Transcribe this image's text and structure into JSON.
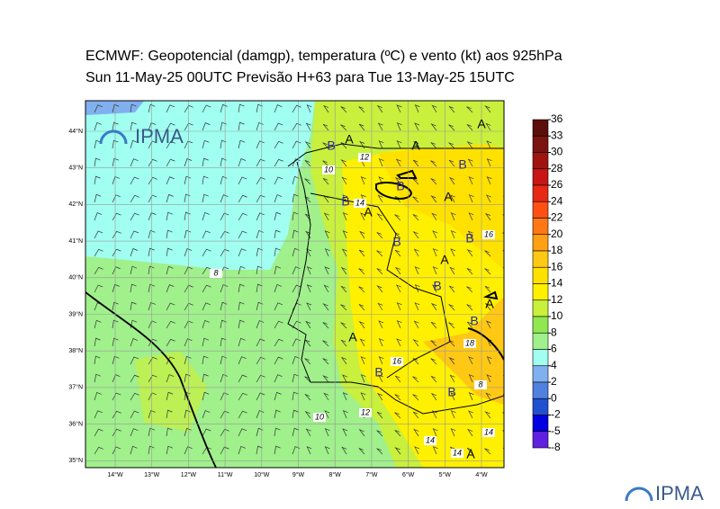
{
  "header": {
    "title": "ECMWF:  Geopotencial (damgp), temperatura (ºC) e vento (kt) aos 925hPa",
    "subtitle": "Sun 11-May-25 00UTC Previsão H+63 para Tue 13-May-25 15UTC"
  },
  "map": {
    "lat_labels": [
      "44°N",
      "43°N",
      "42°N",
      "41°N",
      "40°N",
      "39°N",
      "38°N",
      "37°N",
      "36°N",
      "35°N"
    ],
    "lon_labels": [
      "14°W",
      "13°W",
      "12°W",
      "11°W",
      "10°W",
      "9°W",
      "8°W",
      "7°W",
      "6°W",
      "5°W",
      "4°W"
    ],
    "pressure_centers": [
      "B",
      "A",
      "A",
      "A",
      "B",
      "B",
      "A",
      "B",
      "A",
      "B",
      "B",
      "A",
      "B",
      "A",
      "B",
      "A",
      "B",
      "B",
      "A"
    ],
    "contour_labels": [
      10,
      12,
      14,
      16,
      8,
      18,
      16,
      8,
      10,
      12,
      14,
      14,
      14
    ]
  },
  "colorbar": {
    "levels": [
      36,
      33,
      30,
      28,
      26,
      24,
      22,
      20,
      18,
      16,
      14,
      12,
      10,
      8,
      6,
      4,
      2,
      0,
      -2,
      -5,
      -8
    ],
    "colors": [
      "#5a0f0a",
      "#7a1410",
      "#a01410",
      "#c81414",
      "#e62814",
      "#ff5014",
      "#ff7814",
      "#ffa014",
      "#ffc814",
      "#ffe100",
      "#fff000",
      "#c8f03c",
      "#90e850",
      "#a0f08c",
      "#a0fff0",
      "#80b0f0",
      "#5080e0",
      "#2050d0",
      "#0000e0",
      "#6020e0",
      "#e000e0"
    ]
  },
  "logo": {
    "text": "IPMA"
  }
}
